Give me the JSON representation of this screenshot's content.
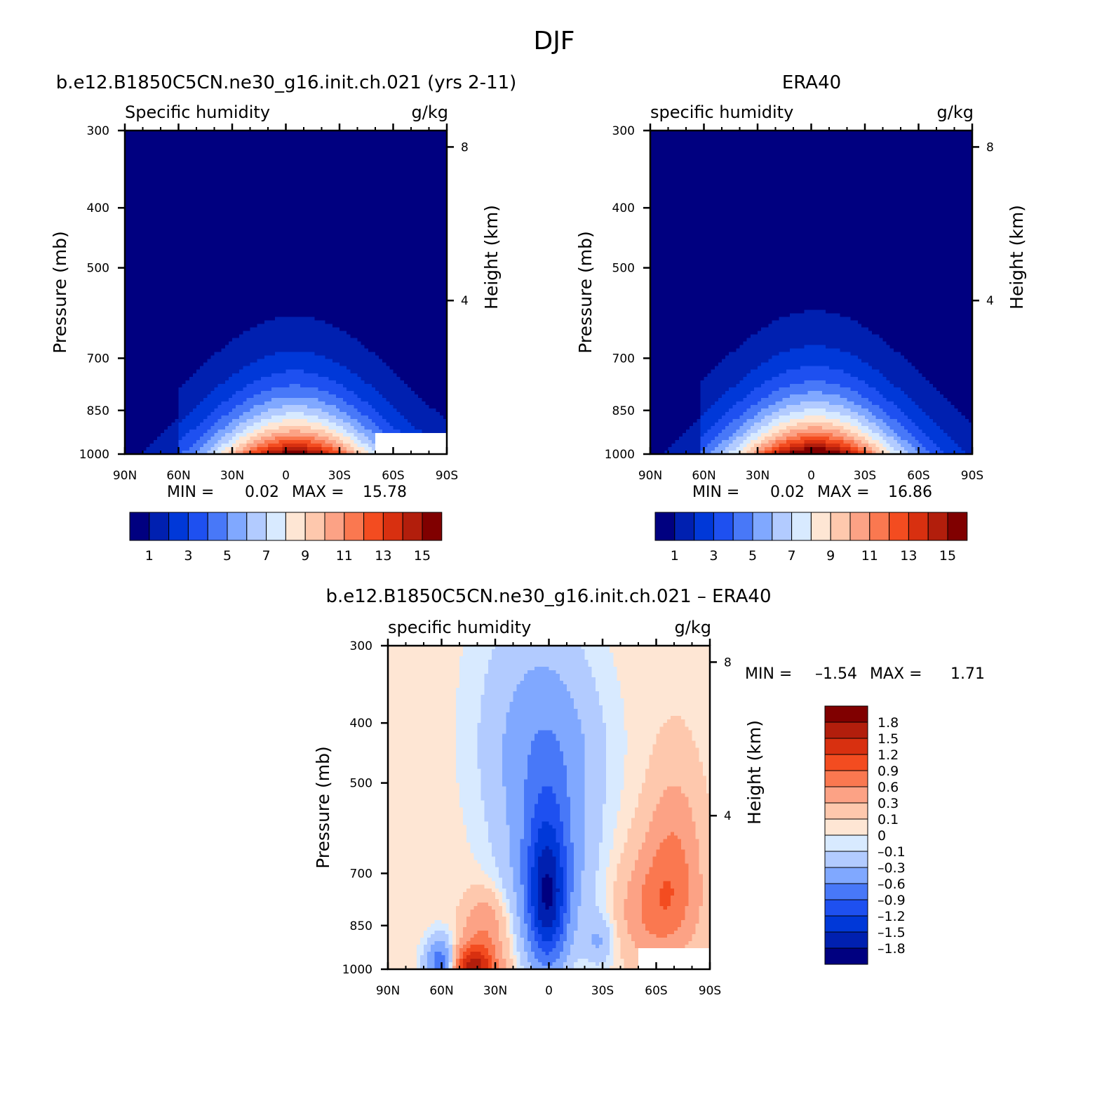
{
  "figure": {
    "title": "DJF",
    "colors": {
      "seq": [
        "#000080",
        "#0020b0",
        "#0038d8",
        "#1e50f0",
        "#4878f8",
        "#80a8ff",
        "#b2cbff",
        "#d8eaff",
        "#fee6d4",
        "#fec8ad",
        "#fca285",
        "#fa7850",
        "#f34c20",
        "#d83010",
        "#b21e0c",
        "#800000"
      ],
      "div": [
        "#000080",
        "#0020b0",
        "#0038d8",
        "#1e50f0",
        "#4878f8",
        "#80a8ff",
        "#b2cbff",
        "#d8eaff",
        "#fee6d4",
        "#fec8ad",
        "#fca285",
        "#fa7850",
        "#f34c20",
        "#d83010",
        "#b21e0c",
        "#800000"
      ]
    }
  },
  "chart_data": [
    {
      "id": "model",
      "type": "contour",
      "title": "b.e12.B1850C5CN.ne30_g16.init.ch.021 (yrs 2-11)",
      "left_label": "Specific humidity",
      "right_label": "g/kg",
      "xlabel": "",
      "ylabel": "Pressure (mb)",
      "ylabel_right": "Height (km)",
      "x_ticks": [
        "90N",
        "60N",
        "30N",
        "0",
        "30S",
        "60S",
        "90S"
      ],
      "x_values": [
        90,
        60,
        30,
        0,
        -30,
        -60,
        -90
      ],
      "xlim": [
        90,
        -90
      ],
      "y_ticks": [
        "300",
        "400",
        "500",
        "700",
        "850",
        "1000"
      ],
      "y_values": [
        300,
        400,
        500,
        700,
        850,
        1000
      ],
      "ylim": [
        1000,
        300
      ],
      "y_scale": "log",
      "height_ticks": [
        "8",
        "4"
      ],
      "height_values_km": [
        8,
        4
      ],
      "stats_min_label": "MIN =",
      "stats_min": "0.02",
      "stats_max_label": "MAX =",
      "stats_max": "15.78",
      "min": 0.02,
      "max": 15.78,
      "levels": [
        1,
        2,
        3,
        4,
        5,
        6,
        7,
        8,
        9,
        10,
        11,
        12,
        13,
        14,
        15
      ],
      "colorbar_labels": [
        "1",
        "3",
        "5",
        "7",
        "9",
        "11",
        "13",
        "15"
      ],
      "colorbar_orientation": "horizontal",
      "peak_lat": -5,
      "missing_region_lat_below": -50,
      "missing_region_p_above": 925
    },
    {
      "id": "obs",
      "type": "contour",
      "title": "ERA40",
      "left_label": "specific humidity",
      "right_label": "g/kg",
      "xlabel": "",
      "ylabel": "Pressure (mb)",
      "ylabel_right": "Height (km)",
      "x_ticks": [
        "90N",
        "60N",
        "30N",
        "0",
        "30S",
        "60S",
        "90S"
      ],
      "x_values": [
        90,
        60,
        30,
        0,
        -30,
        -60,
        -90
      ],
      "xlim": [
        90,
        -90
      ],
      "y_ticks": [
        "300",
        "400",
        "500",
        "700",
        "850",
        "1000"
      ],
      "y_values": [
        300,
        400,
        500,
        700,
        850,
        1000
      ],
      "ylim": [
        1000,
        300
      ],
      "y_scale": "log",
      "height_ticks": [
        "8",
        "4"
      ],
      "height_values_km": [
        8,
        4
      ],
      "stats_min_label": "MIN =",
      "stats_min": "0.02",
      "stats_max_label": "MAX =",
      "stats_max": "16.86",
      "min": 0.02,
      "max": 16.86,
      "levels": [
        1,
        2,
        3,
        4,
        5,
        6,
        7,
        8,
        9,
        10,
        11,
        12,
        13,
        14,
        15
      ],
      "colorbar_labels": [
        "1",
        "3",
        "5",
        "7",
        "9",
        "11",
        "13",
        "15"
      ],
      "colorbar_orientation": "horizontal",
      "peak_lat": -2
    },
    {
      "id": "diff",
      "type": "contour",
      "title": "b.e12.B1850C5CN.ne30_g16.init.ch.021 – ERA40",
      "left_label": "specific humidity",
      "right_label": "g/kg",
      "xlabel": "",
      "ylabel": "Pressure (mb)",
      "ylabel_right": "Height (km)",
      "x_ticks": [
        "90N",
        "60N",
        "30N",
        "0",
        "30S",
        "60S",
        "90S"
      ],
      "x_values": [
        90,
        60,
        30,
        0,
        -30,
        -60,
        -90
      ],
      "xlim": [
        90,
        -90
      ],
      "y_ticks": [
        "300",
        "400",
        "500",
        "700",
        "850",
        "1000"
      ],
      "y_values": [
        300,
        400,
        500,
        700,
        850,
        1000
      ],
      "ylim": [
        1000,
        300
      ],
      "y_scale": "log",
      "height_ticks": [
        "8",
        "4"
      ],
      "height_values_km": [
        8,
        4
      ],
      "stats_min_label": "MIN =",
      "stats_min": "–1.54",
      "stats_max_label": "MAX =",
      "stats_max": "1.71",
      "min": -1.54,
      "max": 1.71,
      "levels": [
        -1.8,
        -1.5,
        -1.2,
        -0.9,
        -0.6,
        -0.3,
        -0.1,
        0,
        0.1,
        0.3,
        0.6,
        0.9,
        1.2,
        1.5,
        1.8
      ],
      "colorbar_labels": [
        "1.8",
        "1.5",
        "1.2",
        "0.9",
        "0.6",
        "0.3",
        "0.1",
        "0",
        "–0.1",
        "–0.3",
        "–0.6",
        "–0.9",
        "–1.2",
        "–1.5",
        "–1.8"
      ],
      "colorbar_orientation": "vertical",
      "missing_region_lat_below": -50,
      "missing_region_p_above": 925
    }
  ]
}
